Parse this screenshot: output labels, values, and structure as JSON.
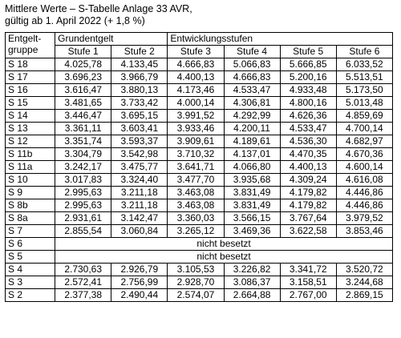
{
  "title": {
    "line1": "Mittlere Werte – S-Tabelle Anlage 33 AVR,",
    "line2": "gültig ab 1. April 2022 (+ 1,8 %)"
  },
  "header": {
    "gruppe_line1": "Entgelt-",
    "gruppe_line2": "gruppe",
    "grundentgelt": "Grundentgelt",
    "entwicklungsstufen": "Entwicklungsstufen",
    "stufen": [
      "Stufe 1",
      "Stufe 2",
      "Stufe 3",
      "Stufe 4",
      "Stufe 5",
      "Stufe 6"
    ]
  },
  "rows": [
    {
      "group": "S 18",
      "values": [
        "4.025,78",
        "4.133,45",
        "4.666,83",
        "5.066,83",
        "5.666,85",
        "6.033,52"
      ]
    },
    {
      "group": "S 17",
      "values": [
        "3.696,23",
        "3.966,79",
        "4.400,13",
        "4.666,83",
        "5.200,16",
        "5.513,51"
      ]
    },
    {
      "group": "S 16",
      "values": [
        "3.616,47",
        "3.880,13",
        "4.173,46",
        "4.533,47",
        "4.933,48",
        "5.173,50"
      ]
    },
    {
      "group": "S 15",
      "values": [
        "3.481,65",
        "3.733,42",
        "4.000,14",
        "4.306,81",
        "4.800,16",
        "5.013,48"
      ]
    },
    {
      "group": "S 14",
      "values": [
        "3.446,47",
        "3.695,15",
        "3.991,52",
        "4.292,99",
        "4.626,36",
        "4.859,69"
      ]
    },
    {
      "group": "S 13",
      "values": [
        "3.361,11",
        "3.603,41",
        "3.933,46",
        "4.200,11",
        "4.533,47",
        "4.700,14"
      ]
    },
    {
      "group": "S 12",
      "values": [
        "3.351,74",
        "3.593,37",
        "3.909,61",
        "4.189,61",
        "4.536,30",
        "4.682,97"
      ]
    },
    {
      "group": "S 11b",
      "values": [
        "3.304,79",
        "3.542,98",
        "3.710,32",
        "4.137,01",
        "4.470,35",
        "4.670,36"
      ]
    },
    {
      "group": "S 11a",
      "values": [
        "3.242,17",
        "3.475,77",
        "3.641,71",
        "4.066,80",
        "4.400,13",
        "4.600,14"
      ]
    },
    {
      "group": "S 10",
      "values": [
        "3.017,83",
        "3.324,40",
        "3.477,70",
        "3.935,68",
        "4.309,24",
        "4.616,08"
      ]
    },
    {
      "group": "S 9",
      "values": [
        "2.995,63",
        "3.211,18",
        "3.463,08",
        "3.831,49",
        "4.179,82",
        "4.446,86"
      ]
    },
    {
      "group": "S 8b",
      "values": [
        "2.995,63",
        "3.211,18",
        "3.463,08",
        "3.831,49",
        "4.179,82",
        "4.446,86"
      ]
    },
    {
      "group": "S 8a",
      "values": [
        "2.931,61",
        "3.142,47",
        "3.360,03",
        "3.566,15",
        "3.767,64",
        "3.979,52"
      ]
    },
    {
      "group": "S 7",
      "values": [
        "2.855,54",
        "3.060,84",
        "3.265,12",
        "3.469,36",
        "3.622,58",
        "3.853,46"
      ]
    },
    {
      "group": "S 6",
      "note": "nicht besetzt"
    },
    {
      "group": "S 5",
      "note": "nicht besetzt"
    },
    {
      "group": "S 4",
      "values": [
        "2.730,63",
        "2.926,79",
        "3.105,53",
        "3.226,82",
        "3.341,72",
        "3.520,72"
      ]
    },
    {
      "group": "S 3",
      "values": [
        "2.572,41",
        "2.756,99",
        "2.928,70",
        "3.086,37",
        "3.158,51",
        "3.244,68"
      ]
    },
    {
      "group": "S 2",
      "values": [
        "2.377,38",
        "2.490,44",
        "2.574,07",
        "2.664,88",
        "2.767,00",
        "2.869,15"
      ]
    }
  ]
}
